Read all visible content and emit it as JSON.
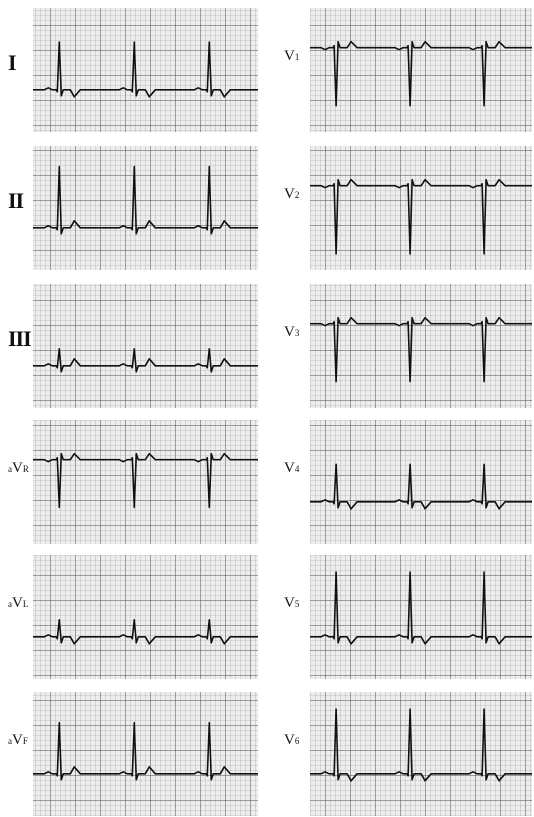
{
  "leads": [
    {
      "id": "I",
      "prefix": "",
      "main": "I",
      "sub": "",
      "polarity": "pos-t",
      "amp": 0.7,
      "roman": true
    },
    {
      "id": "II",
      "prefix": "",
      "main": "II",
      "sub": "",
      "polarity": "pos",
      "amp": 0.9,
      "roman": true
    },
    {
      "id": "III",
      "prefix": "",
      "main": "III",
      "sub": "",
      "polarity": "small",
      "amp": 0.25,
      "roman": true
    },
    {
      "id": "aVR",
      "prefix": "a",
      "main": "V",
      "sub": "R",
      "polarity": "neg",
      "amp": 0.7,
      "roman": false
    },
    {
      "id": "aVL",
      "prefix": "a",
      "main": "V",
      "sub": "L",
      "polarity": "small-t",
      "amp": 0.25,
      "roman": false
    },
    {
      "id": "aVF",
      "prefix": "a",
      "main": "V",
      "sub": "F",
      "polarity": "pos",
      "amp": 0.75,
      "roman": false
    },
    {
      "id": "V1",
      "prefix": "",
      "main": "V",
      "sub": "1",
      "polarity": "neg",
      "amp": 0.85,
      "roman": false
    },
    {
      "id": "V2",
      "prefix": "",
      "main": "V",
      "sub": "2",
      "polarity": "neg",
      "amp": 1.0,
      "roman": false
    },
    {
      "id": "V3",
      "prefix": "",
      "main": "V",
      "sub": "3",
      "polarity": "neg",
      "amp": 0.85,
      "roman": false
    },
    {
      "id": "V4",
      "prefix": "",
      "main": "V",
      "sub": "4",
      "polarity": "pos-t",
      "amp": 0.55,
      "roman": false
    },
    {
      "id": "V5",
      "prefix": "",
      "main": "V",
      "sub": "5",
      "polarity": "pos-t",
      "amp": 0.95,
      "roman": false
    },
    {
      "id": "V6",
      "prefix": "",
      "main": "V",
      "sub": "6",
      "polarity": "pos-t",
      "amp": 0.95,
      "roman": false
    }
  ],
  "colors": {
    "grid_minor": "#9a9a9a",
    "grid_major": "#5a5a5a",
    "paper": "#ededed",
    "trace": "#111111"
  }
}
